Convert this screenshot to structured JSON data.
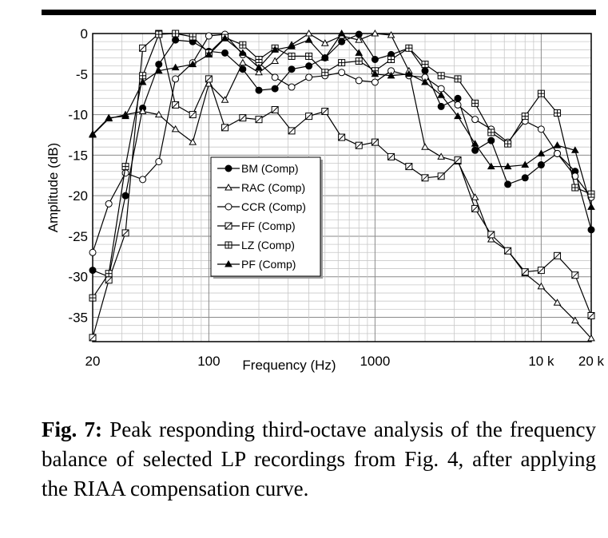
{
  "caption": {
    "label": "Fig. 7:",
    "text": "Peak responding third-octave analysis of the frequency balance of selected LP recordings from Fig. 4, after applying the RIAA compensation curve."
  },
  "chart_data": {
    "type": "line",
    "xlabel": "Frequency (Hz)",
    "ylabel": "Amplitude (dB)",
    "xscale": "log",
    "xlim": [
      20,
      20000
    ],
    "ylim": [
      -38,
      0
    ],
    "xticks": [
      {
        "value": 20,
        "label": "20"
      },
      {
        "value": 100,
        "label": "100"
      },
      {
        "value": 1000,
        "label": "1000"
      },
      {
        "value": 10000,
        "label": "10 k"
      },
      {
        "value": 20000,
        "label": "20 k"
      }
    ],
    "yticks": [
      0,
      -5,
      -10,
      -15,
      -20,
      -25,
      -30,
      -35
    ],
    "grid": true,
    "legend_position": "center-left",
    "x": [
      20,
      25,
      31.5,
      40,
      50,
      63,
      80,
      100,
      125,
      160,
      200,
      250,
      315,
      400,
      500,
      630,
      800,
      1000,
      1250,
      1600,
      2000,
      2500,
      3150,
      4000,
      5000,
      6300,
      8000,
      10000,
      12500,
      16000,
      20000
    ],
    "series": [
      {
        "name": "BM (Comp)",
        "marker": "filled-circle",
        "values": [
          -29.2,
          -30,
          -20,
          -9.2,
          -3.8,
          -0.8,
          -1,
          -2.2,
          -2.4,
          -4.4,
          -7,
          -6.8,
          -4.4,
          -4,
          -3,
          -1,
          -0.1,
          -3.2,
          -2.6,
          -1.8,
          -4.6,
          -9,
          -8,
          -14.4,
          -13.2,
          -18.6,
          -17.8,
          -16.2,
          -14.8,
          -17,
          -24.2
        ]
      },
      {
        "name": "RAC (Comp)",
        "marker": "open-triangle",
        "values": [
          -12.5,
          -10.5,
          -10,
          -9.6,
          -10,
          -11.8,
          -13.4,
          -6.2,
          -8.2,
          -3.6,
          -4.8,
          -3.4,
          -1.4,
          0,
          -1.2,
          -0.3,
          -0.8,
          0,
          -0.2,
          -4.6,
          -14,
          -15.2,
          -15.8,
          -20.2,
          -25.4,
          -26.8,
          -29.6,
          -31.2,
          -33.2,
          -35.4,
          -37.6
        ]
      },
      {
        "name": "CCR (Comp)",
        "marker": "open-circle",
        "values": [
          -27,
          -21,
          -17.2,
          -18,
          -15.8,
          -5.6,
          -3.6,
          -0.3,
          -0.1,
          -2.6,
          -3.6,
          -5.4,
          -6.6,
          -5.4,
          -5.2,
          -4.8,
          -5.8,
          -6,
          -4.6,
          -5.2,
          -5.4,
          -6.8,
          -8.8,
          -10.6,
          -11.8,
          -13.4,
          -10.8,
          -11.8,
          -14.8,
          -17.6,
          -20.2
        ]
      },
      {
        "name": "FF (Comp)",
        "marker": "open-square-slash",
        "values": [
          -37.5,
          -30.4,
          -24.6,
          -1.8,
          0,
          -8.8,
          -10,
          -5.6,
          -11.6,
          -10.4,
          -10.6,
          -9.4,
          -12,
          -10.2,
          -9.6,
          -12.8,
          -13.8,
          -13.4,
          -15.2,
          -16.4,
          -17.8,
          -17.6,
          -15.6,
          -21.6,
          -24.8,
          -26.8,
          -29.4,
          -29.2,
          -27.4,
          -29.8,
          -34.8
        ]
      },
      {
        "name": "LZ (Comp)",
        "marker": "open-square-cross",
        "values": [
          -32.6,
          -29.6,
          -16.4,
          -5.2,
          -0.1,
          0,
          -0.4,
          -2.4,
          -0.5,
          -1.4,
          -3.2,
          -1.8,
          -2.8,
          -2.8,
          -4.8,
          -3.6,
          -3.4,
          -4.6,
          -3.2,
          -1.8,
          -3.8,
          -5.2,
          -5.6,
          -8.6,
          -12.2,
          -13.6,
          -10.2,
          -7.4,
          -9.8,
          -19,
          -19.8
        ]
      },
      {
        "name": "PF (Comp)",
        "marker": "filled-triangle",
        "values": [
          -12.4,
          -10.4,
          -10.2,
          -6,
          -4.6,
          -4.2,
          -3.8,
          -2.6,
          -0.6,
          -2.4,
          -4.2,
          -2,
          -1.6,
          -0.8,
          -3,
          0,
          -2.4,
          -5,
          -5.2,
          -5,
          -6,
          -7.6,
          -10.2,
          -13.6,
          -16.4,
          -16.4,
          -16.2,
          -14.8,
          -13.8,
          -14.4,
          -21.4
        ]
      }
    ]
  }
}
